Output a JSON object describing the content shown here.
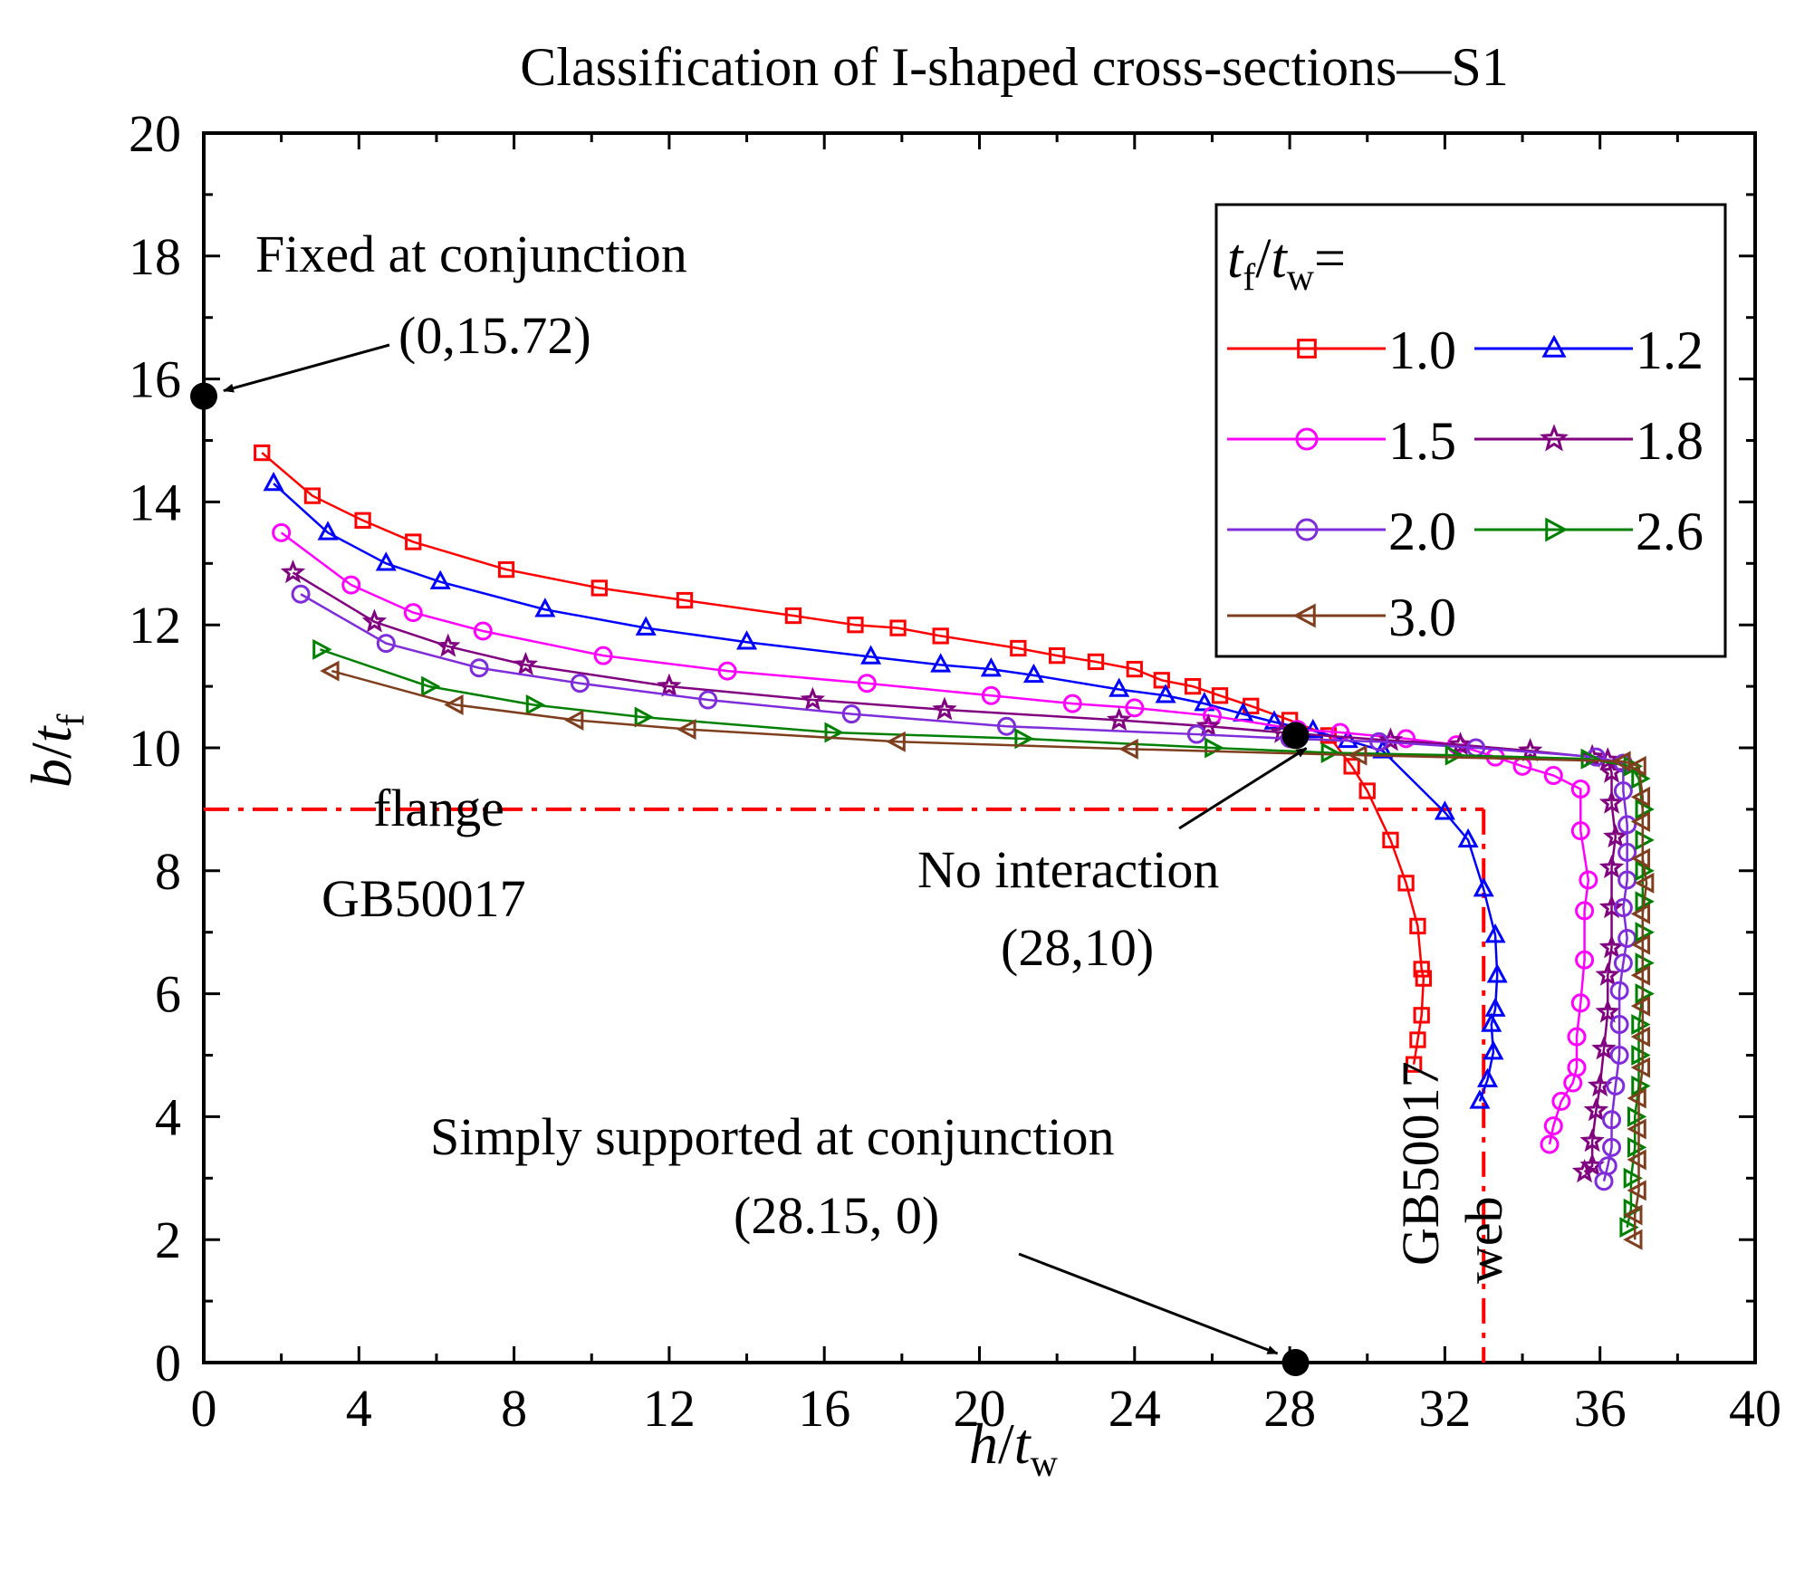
{
  "chart_data": {
    "type": "line",
    "title": "Classification of I-shaped cross-sections—S1",
    "xlabel": {
      "main": "h",
      "sep": "/",
      "var": "t",
      "sub": "w"
    },
    "ylabel": {
      "main": "b",
      "sep": "/",
      "var": "t",
      "sub": "f"
    },
    "xlim": [
      0,
      40
    ],
    "ylim": [
      0,
      20
    ],
    "xticks": [
      "0",
      "4",
      "8",
      "12",
      "16",
      "20",
      "24",
      "28",
      "32",
      "36",
      "40"
    ],
    "yticks": [
      "0",
      "2",
      "4",
      "6",
      "8",
      "10",
      "12",
      "14",
      "16",
      "18",
      "20"
    ],
    "legend": {
      "title": {
        "var": "t",
        "sub1": "f",
        "sep": "/",
        "var2": "t",
        "sub2": "w",
        "eq": "="
      },
      "position": "top-right"
    },
    "series": [
      {
        "name": "1.0",
        "color": "#ff0000",
        "marker": "square",
        "points": [
          [
            1.5,
            14.8
          ],
          [
            2.8,
            14.1
          ],
          [
            4.1,
            13.7
          ],
          [
            5.4,
            13.35
          ],
          [
            7.8,
            12.9
          ],
          [
            10.2,
            12.6
          ],
          [
            12.4,
            12.4
          ],
          [
            15.2,
            12.15
          ],
          [
            16.8,
            12.0
          ],
          [
            17.9,
            11.95
          ],
          [
            19.0,
            11.82
          ],
          [
            21.0,
            11.62
          ],
          [
            22.0,
            11.5
          ],
          [
            23.0,
            11.4
          ],
          [
            24.0,
            11.28
          ],
          [
            24.7,
            11.1
          ],
          [
            25.5,
            11.0
          ],
          [
            26.2,
            10.85
          ],
          [
            27.0,
            10.68
          ],
          [
            28.0,
            10.45
          ],
          [
            29.0,
            10.2
          ],
          [
            29.6,
            9.7
          ],
          [
            30.0,
            9.3
          ],
          [
            30.6,
            8.5
          ],
          [
            31.0,
            7.8
          ],
          [
            31.3,
            7.1
          ],
          [
            31.4,
            6.4
          ],
          [
            31.45,
            6.25
          ],
          [
            31.4,
            5.65
          ],
          [
            31.3,
            5.25
          ],
          [
            31.2,
            4.85
          ]
        ]
      },
      {
        "name": "1.2",
        "color": "#0000ff",
        "marker": "triangle-up",
        "points": [
          [
            1.8,
            14.3
          ],
          [
            3.2,
            13.5
          ],
          [
            4.7,
            13.0
          ],
          [
            6.1,
            12.7
          ],
          [
            8.8,
            12.25
          ],
          [
            11.4,
            11.95
          ],
          [
            14.0,
            11.72
          ],
          [
            17.2,
            11.48
          ],
          [
            19.0,
            11.35
          ],
          [
            20.3,
            11.28
          ],
          [
            21.4,
            11.18
          ],
          [
            23.6,
            10.95
          ],
          [
            24.8,
            10.85
          ],
          [
            25.8,
            10.72
          ],
          [
            26.8,
            10.55
          ],
          [
            27.6,
            10.42
          ],
          [
            28.6,
            10.28
          ],
          [
            29.5,
            10.12
          ],
          [
            30.4,
            9.95
          ],
          [
            32.0,
            8.95
          ],
          [
            32.6,
            8.5
          ],
          [
            33.0,
            7.7
          ],
          [
            33.3,
            6.95
          ],
          [
            33.35,
            6.3
          ],
          [
            33.3,
            5.75
          ],
          [
            33.2,
            5.5
          ],
          [
            33.25,
            5.05
          ],
          [
            33.1,
            4.6
          ],
          [
            32.9,
            4.25
          ]
        ]
      },
      {
        "name": "1.5",
        "color": "#ff00ff",
        "marker": "circle",
        "points": [
          [
            2.0,
            13.5
          ],
          [
            3.8,
            12.65
          ],
          [
            5.4,
            12.2
          ],
          [
            7.2,
            11.9
          ],
          [
            10.3,
            11.5
          ],
          [
            13.5,
            11.25
          ],
          [
            17.1,
            11.05
          ],
          [
            20.3,
            10.85
          ],
          [
            22.4,
            10.72
          ],
          [
            24.0,
            10.65
          ],
          [
            26.0,
            10.52
          ],
          [
            28.2,
            10.3
          ],
          [
            29.3,
            10.25
          ],
          [
            31.0,
            10.15
          ],
          [
            32.3,
            10.05
          ],
          [
            33.3,
            9.85
          ],
          [
            34.0,
            9.7
          ],
          [
            34.8,
            9.55
          ],
          [
            35.5,
            9.33
          ],
          [
            35.5,
            8.65
          ],
          [
            35.7,
            7.85
          ],
          [
            35.6,
            7.35
          ],
          [
            35.6,
            6.55
          ],
          [
            35.5,
            5.85
          ],
          [
            35.4,
            5.3
          ],
          [
            35.4,
            4.8
          ],
          [
            35.3,
            4.55
          ],
          [
            35.0,
            4.25
          ],
          [
            34.8,
            3.85
          ],
          [
            34.7,
            3.55
          ]
        ]
      },
      {
        "name": "1.8",
        "color": "#800080",
        "marker": "star",
        "points": [
          [
            2.3,
            12.85
          ],
          [
            4.4,
            12.05
          ],
          [
            6.3,
            11.65
          ],
          [
            8.3,
            11.35
          ],
          [
            12.0,
            11.0
          ],
          [
            15.7,
            10.78
          ],
          [
            19.1,
            10.62
          ],
          [
            23.6,
            10.45
          ],
          [
            25.9,
            10.35
          ],
          [
            27.8,
            10.25
          ],
          [
            30.6,
            10.12
          ],
          [
            32.4,
            10.05
          ],
          [
            34.2,
            9.95
          ],
          [
            35.8,
            9.85
          ],
          [
            36.2,
            9.8
          ],
          [
            36.3,
            9.6
          ],
          [
            36.3,
            9.1
          ],
          [
            36.4,
            8.55
          ],
          [
            36.3,
            8.05
          ],
          [
            36.3,
            7.4
          ],
          [
            36.3,
            6.75
          ],
          [
            36.2,
            6.3
          ],
          [
            36.2,
            5.7
          ],
          [
            36.1,
            5.1
          ],
          [
            36.0,
            4.5
          ],
          [
            35.9,
            4.1
          ],
          [
            35.8,
            3.6
          ],
          [
            35.8,
            3.2
          ],
          [
            35.6,
            3.1
          ]
        ]
      },
      {
        "name": "2.0",
        "color": "#7f2cdb",
        "marker": "circle",
        "points": [
          [
            2.5,
            12.5
          ],
          [
            4.7,
            11.7
          ],
          [
            7.1,
            11.3
          ],
          [
            9.7,
            11.05
          ],
          [
            13.0,
            10.78
          ],
          [
            16.7,
            10.55
          ],
          [
            20.7,
            10.35
          ],
          [
            25.6,
            10.22
          ],
          [
            28.0,
            10.15
          ],
          [
            30.3,
            10.1
          ],
          [
            32.8,
            10.0
          ],
          [
            35.9,
            9.85
          ],
          [
            36.6,
            9.75
          ],
          [
            36.6,
            9.3
          ],
          [
            36.7,
            8.75
          ],
          [
            36.7,
            8.3
          ],
          [
            36.7,
            7.85
          ],
          [
            36.6,
            7.4
          ],
          [
            36.7,
            6.9
          ],
          [
            36.6,
            6.5
          ],
          [
            36.5,
            6.05
          ],
          [
            36.5,
            5.5
          ],
          [
            36.5,
            5.0
          ],
          [
            36.4,
            4.5
          ],
          [
            36.3,
            3.95
          ],
          [
            36.3,
            3.5
          ],
          [
            36.2,
            3.2
          ],
          [
            36.1,
            2.95
          ]
        ]
      },
      {
        "name": "2.6",
        "color": "#008000",
        "marker": "triangle-right",
        "points": [
          [
            3.0,
            11.6
          ],
          [
            5.8,
            11.0
          ],
          [
            8.5,
            10.7
          ],
          [
            11.3,
            10.5
          ],
          [
            16.2,
            10.25
          ],
          [
            21.1,
            10.15
          ],
          [
            26.0,
            10.0
          ],
          [
            29.0,
            9.92
          ],
          [
            32.2,
            9.88
          ],
          [
            35.7,
            9.82
          ],
          [
            36.8,
            9.7
          ],
          [
            37.0,
            9.5
          ],
          [
            37.1,
            9.0
          ],
          [
            37.1,
            8.5
          ],
          [
            37.1,
            8.0
          ],
          [
            37.1,
            7.5
          ],
          [
            37.1,
            7.0
          ],
          [
            37.1,
            6.5
          ],
          [
            37.1,
            6.0
          ],
          [
            37.0,
            5.5
          ],
          [
            37.0,
            5.0
          ],
          [
            37.0,
            4.5
          ],
          [
            36.9,
            4.0
          ],
          [
            36.9,
            3.5
          ],
          [
            36.8,
            3.0
          ],
          [
            36.8,
            2.5
          ],
          [
            36.7,
            2.2
          ]
        ]
      },
      {
        "name": "3.0",
        "color": "#7f3f1f",
        "marker": "triangle-left",
        "points": [
          [
            3.3,
            11.25
          ],
          [
            6.5,
            10.7
          ],
          [
            9.6,
            10.45
          ],
          [
            12.5,
            10.3
          ],
          [
            17.9,
            10.1
          ],
          [
            23.9,
            9.98
          ],
          [
            29.8,
            9.88
          ],
          [
            36.6,
            9.78
          ],
          [
            37.0,
            9.7
          ],
          [
            37.1,
            9.2
          ],
          [
            37.1,
            8.8
          ],
          [
            37.1,
            8.2
          ],
          [
            37.2,
            7.8
          ],
          [
            37.1,
            7.3
          ],
          [
            37.1,
            6.8
          ],
          [
            37.1,
            6.3
          ],
          [
            37.1,
            5.8
          ],
          [
            37.1,
            5.3
          ],
          [
            37.1,
            4.8
          ],
          [
            37.0,
            4.3
          ],
          [
            37.0,
            3.8
          ],
          [
            37.0,
            3.3
          ],
          [
            37.0,
            2.8
          ],
          [
            36.9,
            2.4
          ],
          [
            36.9,
            2.0
          ]
        ]
      }
    ],
    "reference_lines": [
      {
        "name": "flange GB50017",
        "color": "#ff0000",
        "style": "dash-dot",
        "points": [
          [
            0,
            9
          ],
          [
            33,
            9
          ]
        ]
      },
      {
        "name": "web GB50017",
        "color": "#ff0000",
        "style": "dash-dot",
        "points": [
          [
            33,
            9
          ],
          [
            33,
            0
          ]
        ]
      }
    ],
    "key_points": [
      {
        "name": "fixed",
        "x": 0,
        "y": 15.72
      },
      {
        "name": "no-interaction",
        "x": 28.15,
        "y": 10.2
      },
      {
        "name": "simply-supported",
        "x": 28.15,
        "y": 0
      }
    ],
    "annotations": {
      "fixed_label": "Fixed at conjunction",
      "fixed_coord": "(0,15.72)",
      "no_interaction_label": "No interaction",
      "no_interaction_coord": "(28,10)",
      "simply_label": "Simply supported at conjunction",
      "simply_coord": "(28.15, 0)",
      "flange_label": "flange",
      "flange_code": "GB50017",
      "web_code": "GB50017",
      "web_label": "web"
    }
  }
}
